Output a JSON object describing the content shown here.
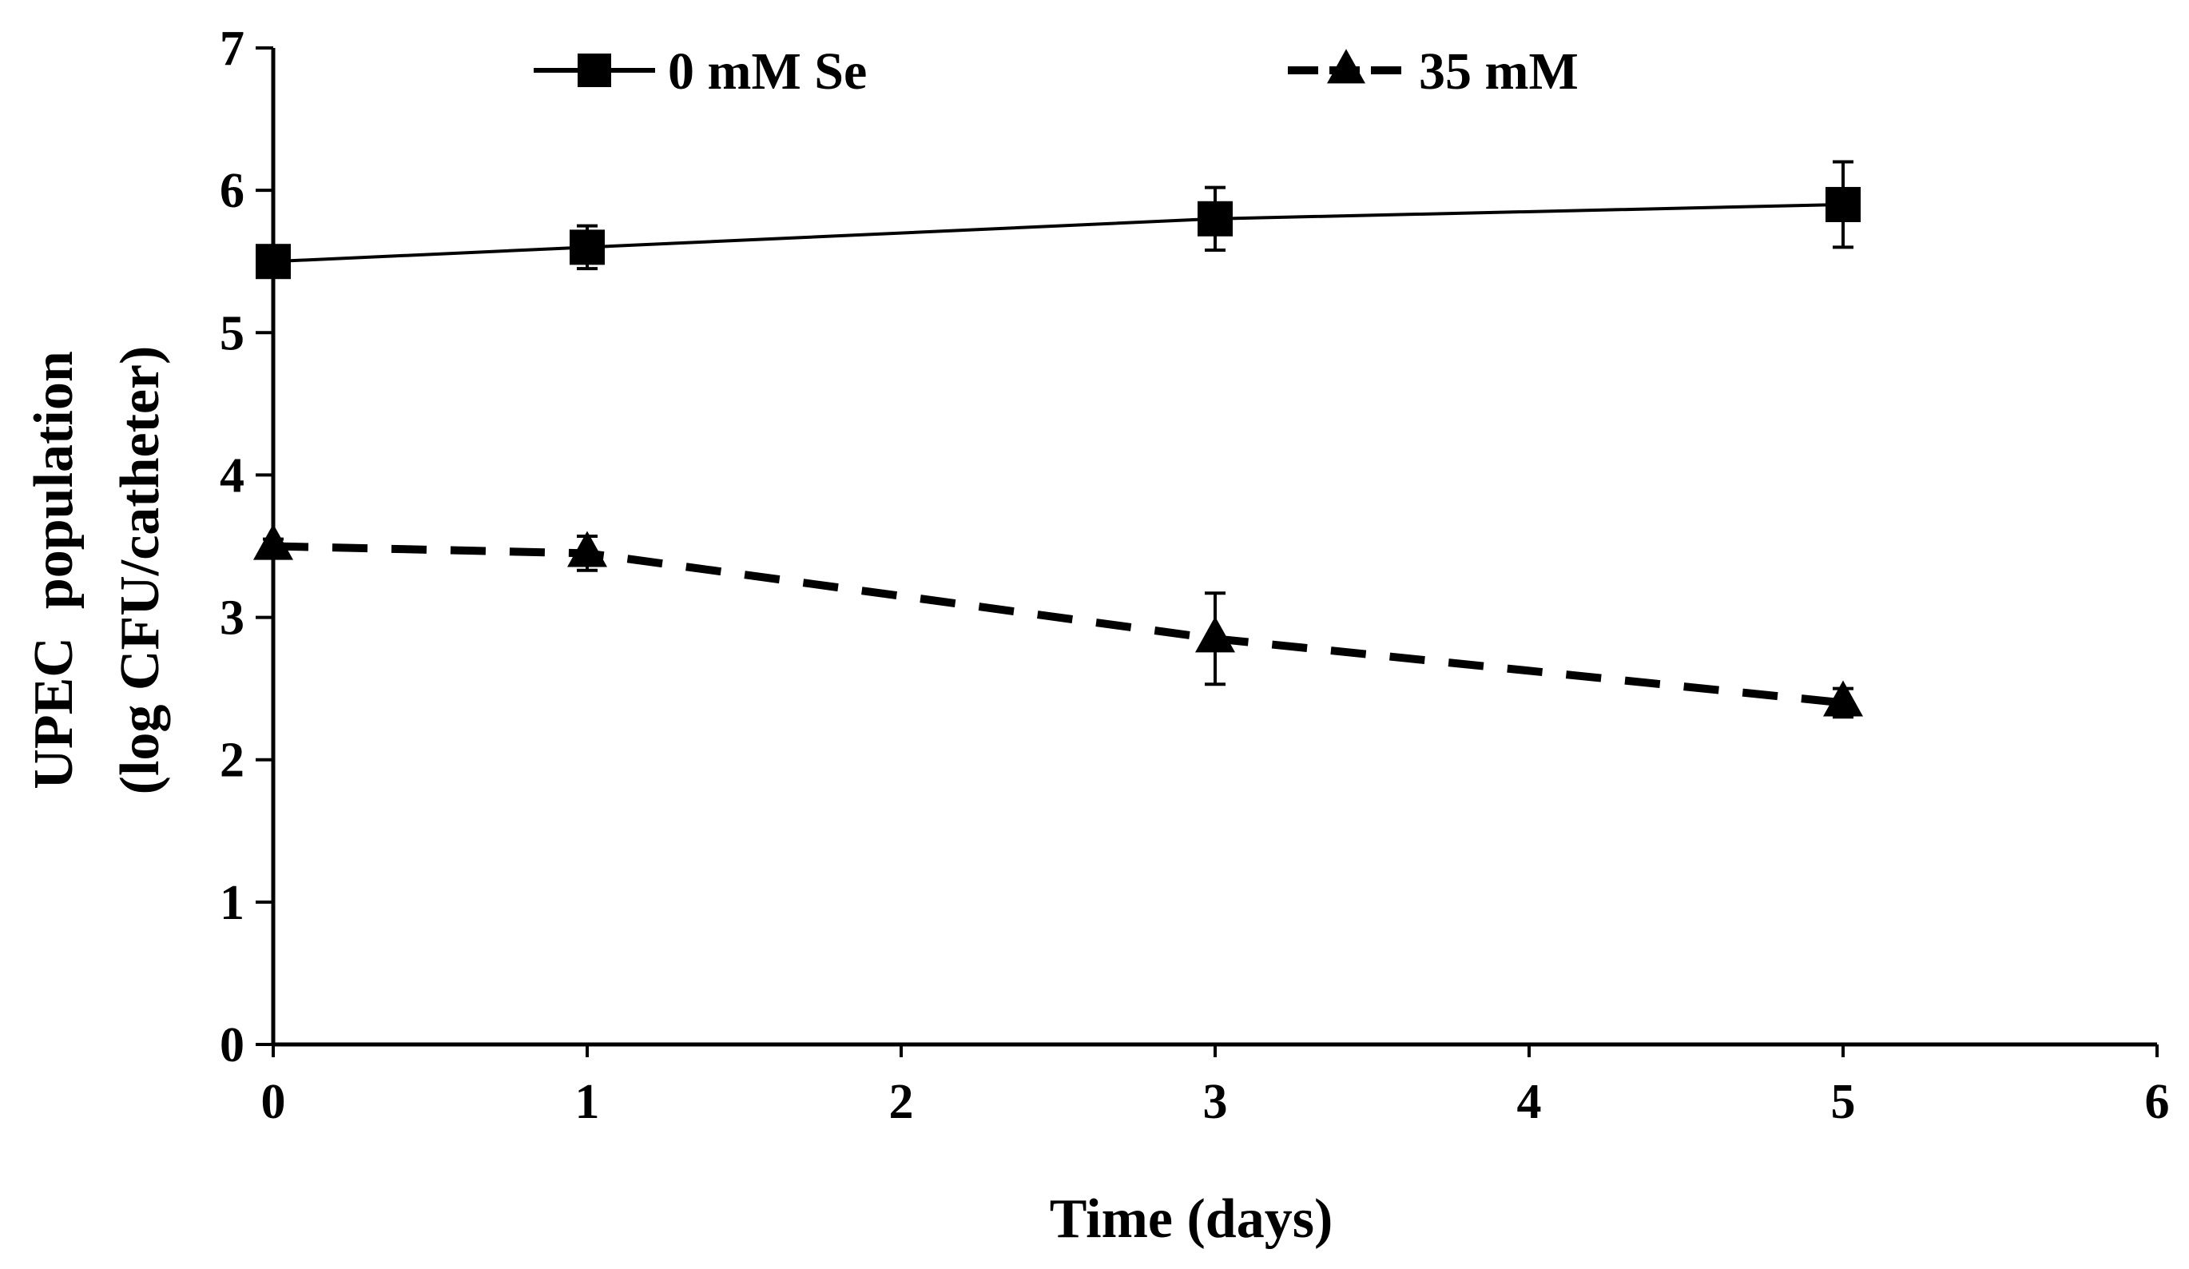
{
  "chart_data": {
    "type": "line",
    "title": "",
    "xlabel": "Time (days)",
    "ylabel": [
      "UPEC  population",
      "(log CFU/catheter)"
    ],
    "xlim": [
      0,
      6
    ],
    "ylim": [
      0,
      7
    ],
    "xticks": [
      0,
      1,
      2,
      3,
      4,
      5,
      6
    ],
    "yticks": [
      0,
      1,
      2,
      3,
      4,
      5,
      6,
      7
    ],
    "grid": false,
    "legend_position": "top",
    "series": [
      {
        "name": "0 mM Se",
        "marker": "square",
        "line_style": "solid",
        "x": [
          0,
          1,
          3,
          5
        ],
        "y": [
          5.5,
          5.6,
          5.8,
          5.9
        ],
        "err": [
          0.1,
          0.15,
          0.22,
          0.3
        ]
      },
      {
        "name": "35 mM",
        "marker": "triangle",
        "line_style": "dashed",
        "x": [
          0,
          1,
          3,
          5
        ],
        "y": [
          3.5,
          3.45,
          2.85,
          2.4
        ],
        "err": [
          0.05,
          0.12,
          0.32,
          0.1
        ]
      }
    ]
  }
}
